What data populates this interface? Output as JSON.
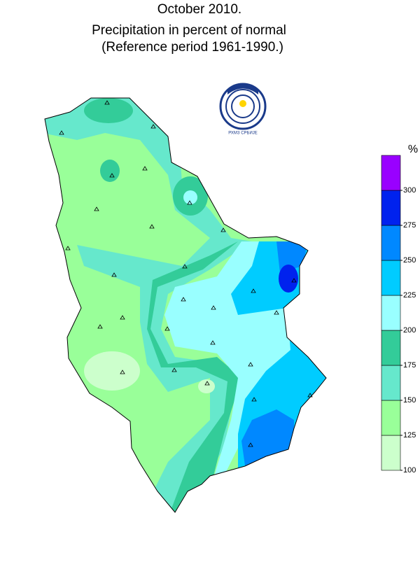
{
  "header": {
    "lines": [
      "October 2010.",
      "Precipitation in percent of normal",
      "(Reference period 1961-1990.)"
    ]
  },
  "logo": {
    "text": "РХМЗ СРБИЈЕ"
  },
  "legend": {
    "unit": "%",
    "ticks": [
      100,
      125,
      150,
      175,
      200,
      225,
      250,
      275,
      300
    ],
    "colors": [
      "#ccffcc",
      "#99ff99",
      "#66e8cc",
      "#33cc99",
      "#99ffff",
      "#00ccff",
      "#0088ff",
      "#0022ee",
      "#9900ff"
    ]
  }
}
